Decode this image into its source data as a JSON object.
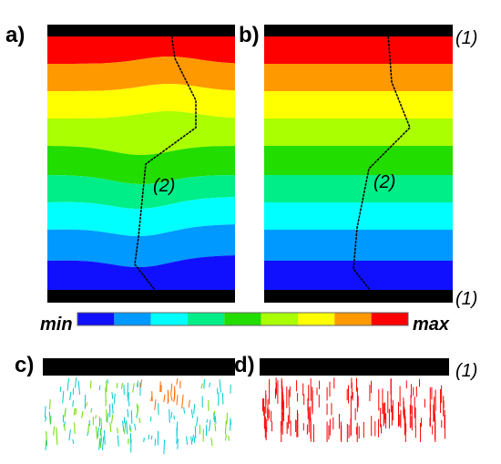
{
  "panels": [
    {
      "label": "a)"
    },
    {
      "label": "b)"
    },
    {
      "label": "c)"
    },
    {
      "label": "d)"
    }
  ],
  "annotations": {
    "top_boundary": "(1)",
    "bottom_boundary": "(1)",
    "vector_boundary": "(1)",
    "path_a": "(2)",
    "path_b": "(2)"
  },
  "colorbar": {
    "min": "min",
    "max": "max"
  }
}
